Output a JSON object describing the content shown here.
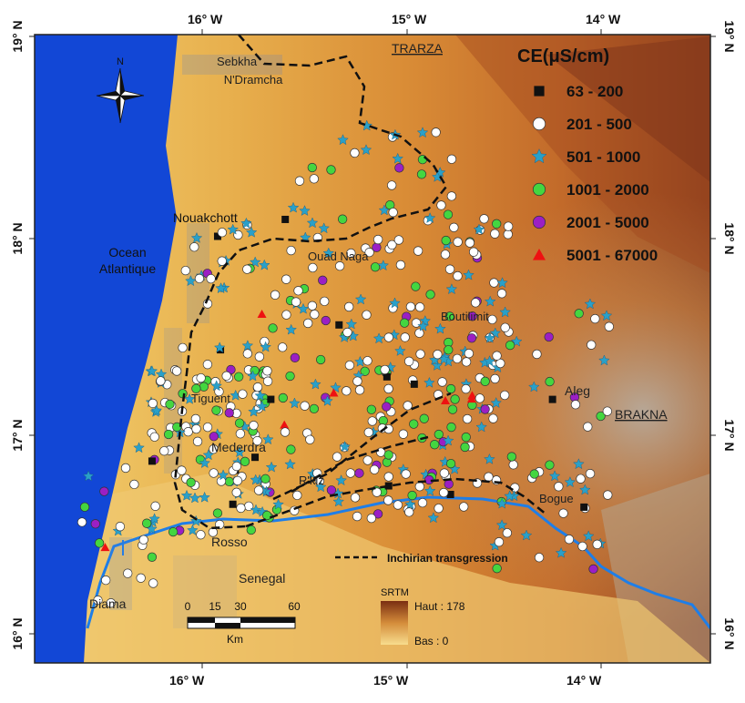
{
  "map": {
    "coords": {
      "top": [
        "16° W",
        "15° W",
        "14° W"
      ],
      "bottom": [
        "16° W",
        "15° W",
        "14° W"
      ],
      "left": [
        "19° N",
        "18° N",
        "17° N",
        "16° N"
      ],
      "right": [
        "19° N",
        "18° N",
        "17° N",
        "16° N"
      ]
    },
    "places": {
      "sebkha": [
        "Sebkha",
        "N'Dramcha"
      ],
      "trarza": "TRARZA",
      "nouakchott": "Nouakchott",
      "ocean": [
        "Ocean",
        "Atlantique"
      ],
      "boutilimit": "Boutilimit",
      "aleg": "Aleg",
      "brakna": "BRAKNA",
      "mederdra": "Mederdra",
      "rkiz": "R'kiz",
      "bogue": "Bogue",
      "rosso": "Rosso",
      "senegal": "Senegal",
      "diama": "Diama",
      "tiguent": "Tiguent",
      "ouad_naga": "Ouad Naga"
    },
    "legend": {
      "title": "CE(μS/cm)",
      "classes": [
        {
          "label": "63 - 200",
          "symbol": "square",
          "color": "#111111"
        },
        {
          "label": "201 - 500",
          "symbol": "circle",
          "color": "#ffffff"
        },
        {
          "label": "501 - 1000",
          "symbol": "star",
          "color": "#2aa0c8"
        },
        {
          "label": "1001 - 2000",
          "symbol": "circle",
          "color": "#44d640"
        },
        {
          "label": "2001 - 5000",
          "symbol": "circle",
          "color": "#9b1fc4"
        },
        {
          "label": "5001 - 67000",
          "symbol": "triangle",
          "color": "#ee1111"
        }
      ]
    },
    "transgression_label": "Inchirian transgression",
    "srtm": {
      "title": "SRTM",
      "high": "Haut : 178",
      "low": "Bas : 0"
    },
    "scalebar": {
      "ticks": [
        "0",
        "15",
        "30",
        "60"
      ],
      "unit": "Km"
    },
    "north_arrow": "N"
  }
}
